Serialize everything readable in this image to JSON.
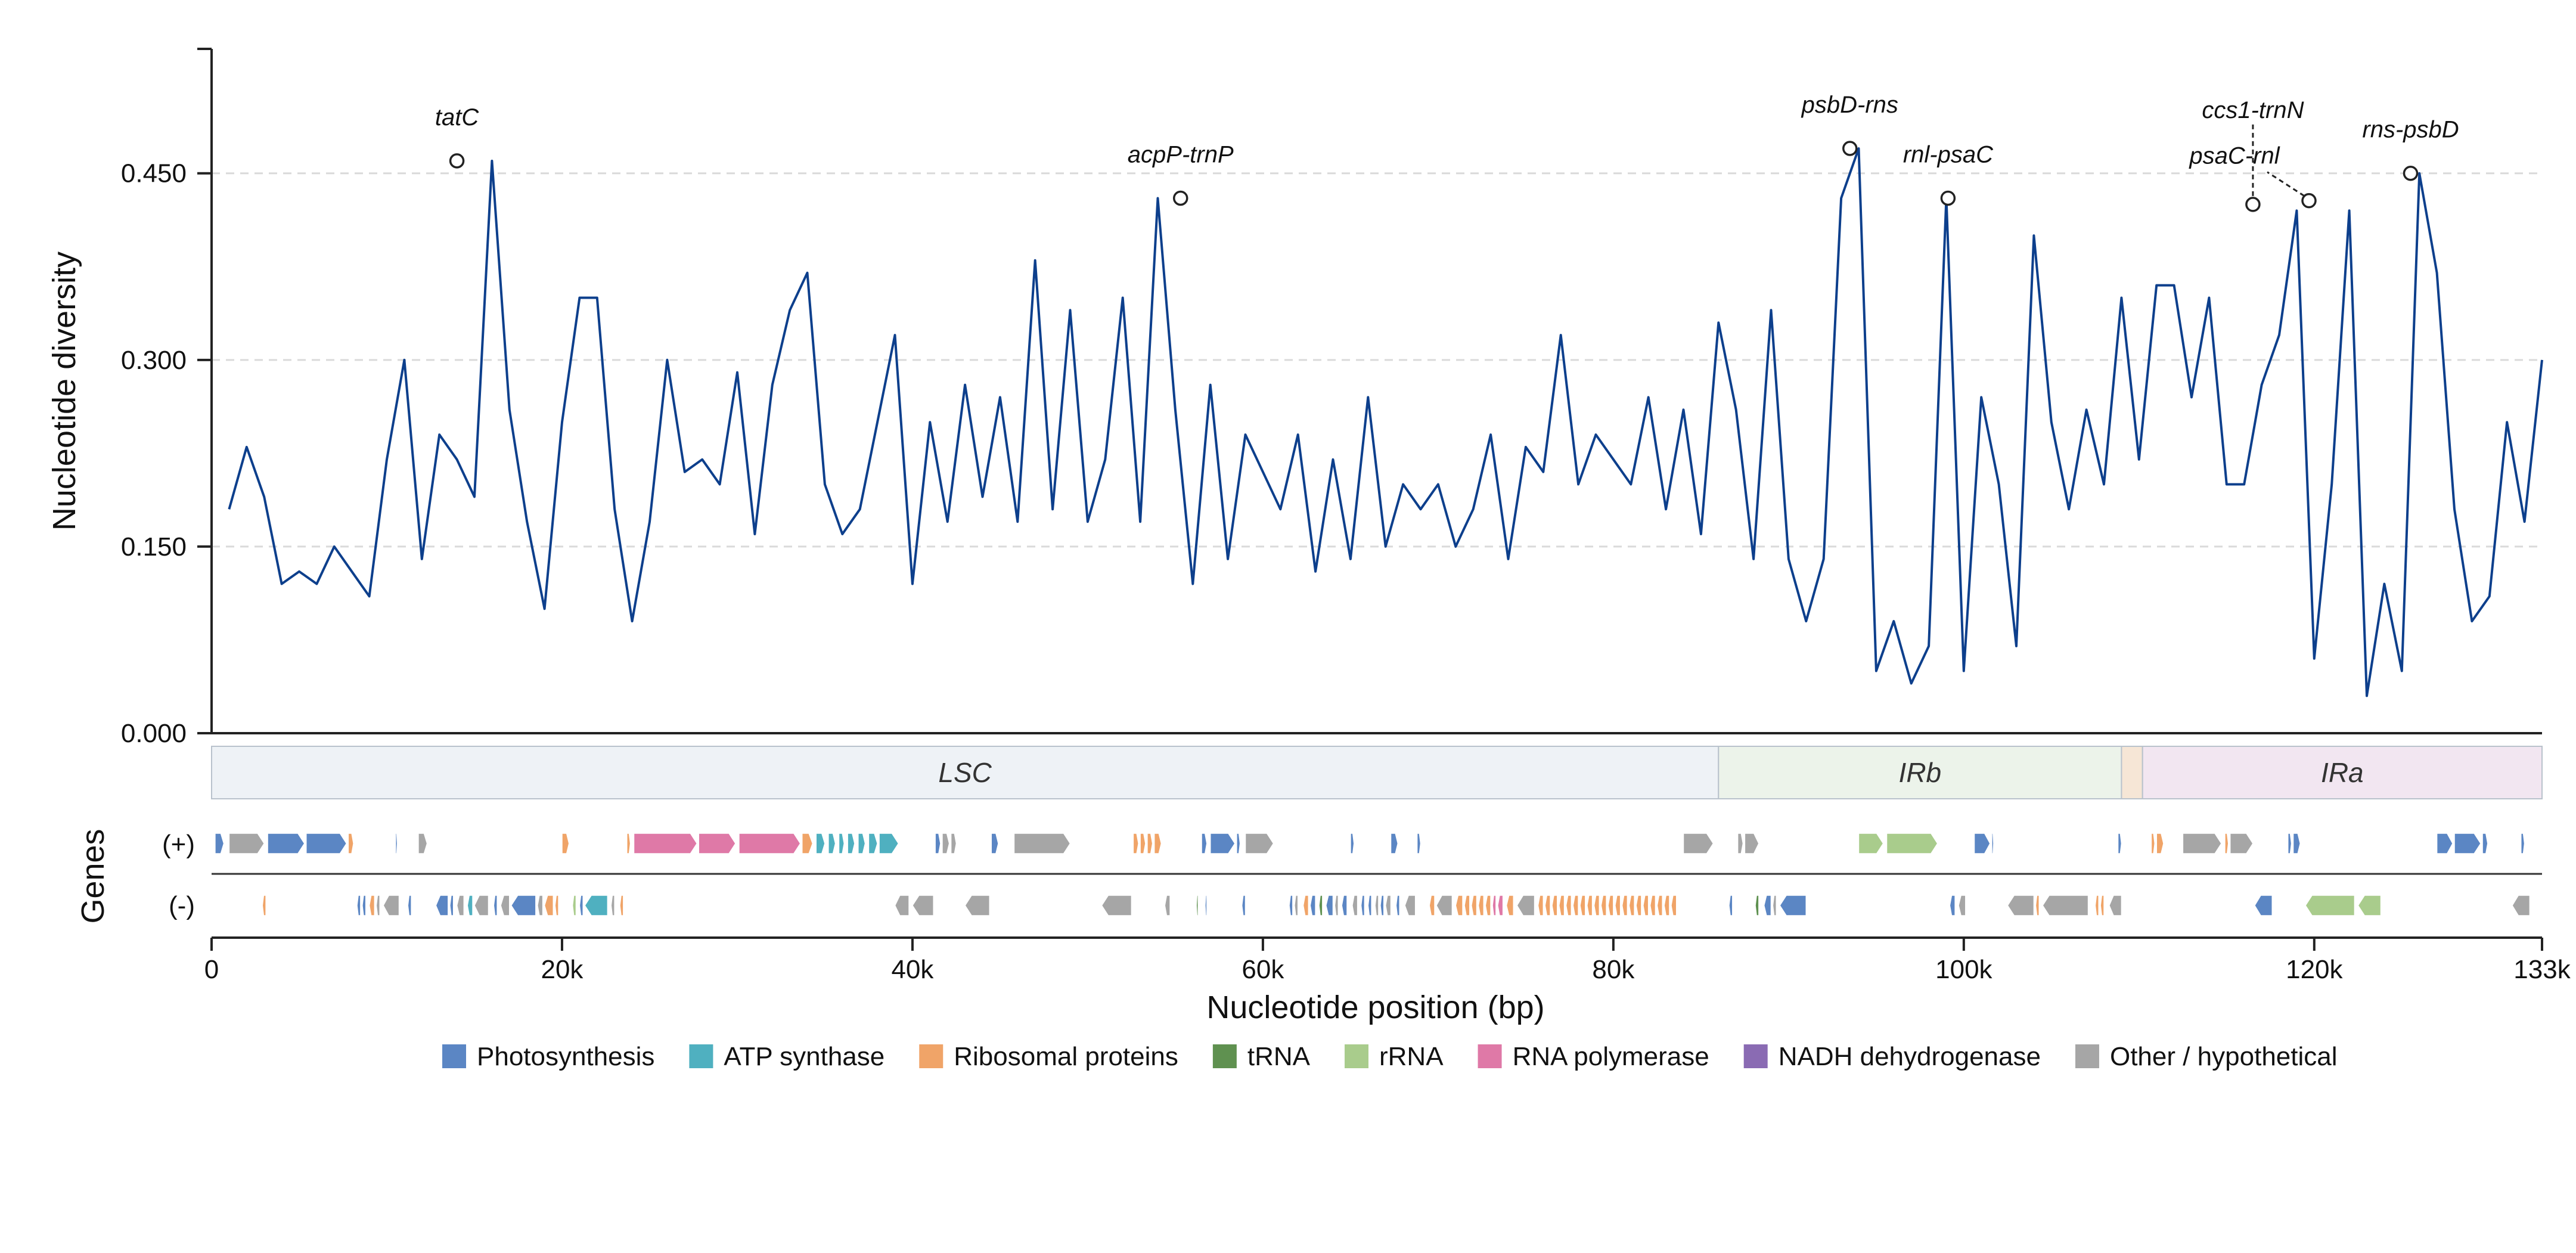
{
  "chart_data": {
    "type": "line",
    "ylabel": "Nucleotide diversity",
    "xlabel": "Nucleotide position (bp)",
    "genes_axis_label": "Genes",
    "xlim": [
      0,
      133000
    ],
    "ylim": [
      0,
      0.55
    ],
    "yticks": [
      {
        "v": 0.0,
        "label": "0.000"
      },
      {
        "v": 0.15,
        "label": "0.150"
      },
      {
        "v": 0.3,
        "label": "0.300"
      },
      {
        "v": 0.45,
        "label": "0.450"
      }
    ],
    "xticks": [
      {
        "v": 0,
        "label": "0"
      },
      {
        "v": 20000,
        "label": "20k"
      },
      {
        "v": 40000,
        "label": "40k"
      },
      {
        "v": 60000,
        "label": "60k"
      },
      {
        "v": 80000,
        "label": "80k"
      },
      {
        "v": 100000,
        "label": "100k"
      },
      {
        "v": 120000,
        "label": "120k"
      },
      {
        "v": 133000,
        "label": "133k"
      }
    ],
    "grid": "horizontal-dashed",
    "line_color": "#0d3f8c",
    "series": [
      {
        "x": [
          1000,
          2000,
          3000,
          4000,
          5000,
          6000,
          7000,
          8000,
          9000,
          10000,
          11000,
          12000,
          13000,
          14000,
          15000,
          16000,
          17000,
          18000,
          19000,
          20000,
          21000,
          22000,
          23000,
          24000,
          25000,
          26000,
          27000,
          28000,
          29000,
          30000,
          31000,
          32000,
          33000,
          34000,
          35000,
          36000,
          37000,
          38000,
          39000,
          40000,
          41000,
          42000,
          43000,
          44000,
          45000,
          46000,
          47000,
          48000,
          49000,
          50000,
          51000,
          52000,
          53000,
          54000,
          55000,
          56000,
          57000,
          58000,
          59000,
          60000,
          61000,
          62000,
          63000,
          64000,
          65000,
          66000,
          67000,
          68000,
          69000,
          70000,
          71000,
          72000,
          73000,
          74000,
          75000,
          76000,
          77000,
          78000,
          79000,
          80000,
          81000,
          82000,
          83000,
          84000,
          85000,
          86000,
          87000,
          88000,
          89000,
          90000,
          91000,
          92000,
          93000,
          94000,
          95000,
          96000,
          97000,
          98000,
          99000,
          100000,
          101000,
          102000,
          103000,
          104000,
          105000,
          106000,
          107000,
          108000,
          109000,
          110000,
          111000,
          112000,
          113000,
          114000,
          115000,
          116000,
          117000,
          118000,
          119000,
          120000,
          121000,
          122000,
          123000,
          124000,
          125000,
          126000,
          127000,
          128000,
          129000,
          130000,
          131000,
          132000,
          133000
        ],
        "values": [
          0.18,
          0.23,
          0.19,
          0.12,
          0.13,
          0.12,
          0.15,
          0.13,
          0.11,
          0.22,
          0.3,
          0.14,
          0.24,
          0.22,
          0.19,
          0.46,
          0.26,
          0.17,
          0.1,
          0.25,
          0.35,
          0.35,
          0.18,
          0.09,
          0.17,
          0.3,
          0.21,
          0.22,
          0.2,
          0.29,
          0.16,
          0.28,
          0.34,
          0.37,
          0.2,
          0.16,
          0.18,
          0.25,
          0.32,
          0.12,
          0.25,
          0.17,
          0.28,
          0.19,
          0.27,
          0.17,
          0.38,
          0.18,
          0.34,
          0.17,
          0.22,
          0.35,
          0.17,
          0.43,
          0.26,
          0.12,
          0.28,
          0.14,
          0.24,
          0.21,
          0.18,
          0.24,
          0.13,
          0.22,
          0.14,
          0.27,
          0.15,
          0.2,
          0.18,
          0.2,
          0.15,
          0.18,
          0.24,
          0.14,
          0.23,
          0.21,
          0.32,
          0.2,
          0.24,
          0.22,
          0.2,
          0.27,
          0.18,
          0.26,
          0.16,
          0.33,
          0.26,
          0.14,
          0.34,
          0.14,
          0.09,
          0.14,
          0.43,
          0.47,
          0.05,
          0.09,
          0.04,
          0.07,
          0.43,
          0.05,
          0.27,
          0.2,
          0.07,
          0.4,
          0.25,
          0.18,
          0.26,
          0.2,
          0.35,
          0.22,
          0.36,
          0.36,
          0.27,
          0.35,
          0.2,
          0.2,
          0.28,
          0.32,
          0.42,
          0.06,
          0.2,
          0.42,
          0.03,
          0.12,
          0.05,
          0.45,
          0.37,
          0.18,
          0.09,
          0.11,
          0.25,
          0.17,
          0.3
        ]
      }
    ],
    "peaks": [
      {
        "label": "tatC",
        "x": 14000,
        "y": 0.46
      },
      {
        "label": "acpP-trnP",
        "x": 55300,
        "y": 0.43
      },
      {
        "label": "psbD-rns",
        "x": 93500,
        "y": 0.47
      },
      {
        "label": "rnl-psaC",
        "x": 99100,
        "y": 0.43
      },
      {
        "label": "ccs1-trnN",
        "x": 116500,
        "y": 0.425
      },
      {
        "label": "psaC-rnl",
        "x": 119700,
        "y": 0.428
      },
      {
        "label": "rns-psbD",
        "x": 125500,
        "y": 0.45
      }
    ],
    "regions": [
      {
        "label": "LSC",
        "start": 0,
        "end": 86000,
        "color": "#eef2f6"
      },
      {
        "label": "IRb",
        "start": 86000,
        "end": 109000,
        "color": "#ecf3ea"
      },
      {
        "label": "",
        "start": 109000,
        "end": 110200,
        "color": "#f6e6d6"
      },
      {
        "label": "IRa",
        "start": 110200,
        "end": 133000,
        "color": "#f2e6f1"
      }
    ],
    "strand_labels": {
      "plus": "(+)",
      "minus": "(-)"
    },
    "category_colors": {
      "photo": "#5b86c4",
      "atp": "#4fb0c0",
      "ribo": "#f0a468",
      "trna": "#5f9150",
      "rrna": "#a9cc8c",
      "rpo": "#df79a7",
      "ndh": "#8a6bb3",
      "other": "#a6a6a6"
    },
    "genes_plus": [
      [
        200,
        700,
        "photo"
      ],
      [
        1000,
        3000,
        "other"
      ],
      [
        3200,
        5300,
        "photo"
      ],
      [
        5400,
        7700,
        "photo"
      ],
      [
        7800,
        8100,
        "ribo"
      ],
      [
        10500,
        10600,
        "photo"
      ],
      [
        11800,
        12300,
        "other"
      ],
      [
        20000,
        20400,
        "ribo"
      ],
      [
        23700,
        23900,
        "ribo"
      ],
      [
        24100,
        27700,
        "rpo"
      ],
      [
        27800,
        29900,
        "rpo"
      ],
      [
        30100,
        33600,
        "rpo"
      ],
      [
        33700,
        34300,
        "ribo"
      ],
      [
        34500,
        35000,
        "atp"
      ],
      [
        35200,
        35600,
        "atp"
      ],
      [
        35800,
        36100,
        "atp"
      ],
      [
        36300,
        36700,
        "atp"
      ],
      [
        36900,
        37300,
        "atp"
      ],
      [
        37500,
        38000,
        "atp"
      ],
      [
        38100,
        39200,
        "atp"
      ],
      [
        41300,
        41600,
        "photo"
      ],
      [
        41700,
        42100,
        "other"
      ],
      [
        42200,
        42500,
        "other"
      ],
      [
        44500,
        44900,
        "photo"
      ],
      [
        45800,
        49000,
        "other"
      ],
      [
        52600,
        52900,
        "ribo"
      ],
      [
        53000,
        53300,
        "ribo"
      ],
      [
        53400,
        53700,
        "ribo"
      ],
      [
        53800,
        54200,
        "ribo"
      ],
      [
        56500,
        56800,
        "photo"
      ],
      [
        57000,
        58400,
        "photo"
      ],
      [
        58500,
        58700,
        "photo"
      ],
      [
        59000,
        60600,
        "other"
      ],
      [
        65000,
        65200,
        "photo"
      ],
      [
        67300,
        67700,
        "photo"
      ],
      [
        68800,
        69000,
        "photo"
      ],
      [
        84000,
        85700,
        "other"
      ],
      [
        87100,
        87400,
        "other"
      ],
      [
        87500,
        88300,
        "other"
      ],
      [
        94000,
        95400,
        "rrna"
      ],
      [
        95600,
        98500,
        "rrna"
      ],
      [
        100600,
        101500,
        "photo"
      ],
      [
        101600,
        101700,
        "photo"
      ],
      [
        108800,
        109000,
        "photo"
      ],
      [
        110700,
        110900,
        "ribo"
      ],
      [
        111000,
        111400,
        "ribo"
      ],
      [
        112500,
        114700,
        "other"
      ],
      [
        114900,
        115100,
        "ribo"
      ],
      [
        115200,
        116500,
        "other"
      ],
      [
        118500,
        118700,
        "photo"
      ],
      [
        118800,
        119200,
        "photo"
      ],
      [
        127000,
        127900,
        "photo"
      ],
      [
        128000,
        129500,
        "photo"
      ],
      [
        129600,
        129900,
        "photo"
      ],
      [
        131800,
        132000,
        "photo"
      ]
    ],
    "genes_minus": [
      [
        2900,
        3100,
        "ribo"
      ],
      [
        8300,
        8500,
        "photo"
      ],
      [
        8600,
        8800,
        "photo"
      ],
      [
        9000,
        9300,
        "ribo"
      ],
      [
        9400,
        9600,
        "other"
      ],
      [
        9800,
        10700,
        "other"
      ],
      [
        11200,
        11400,
        "photo"
      ],
      [
        12800,
        13500,
        "photo"
      ],
      [
        13600,
        13800,
        "photo"
      ],
      [
        14000,
        14400,
        "other"
      ],
      [
        14600,
        14900,
        "atp"
      ],
      [
        15000,
        15800,
        "other"
      ],
      [
        16100,
        16300,
        "photo"
      ],
      [
        16500,
        17000,
        "other"
      ],
      [
        17100,
        18500,
        "photo"
      ],
      [
        18600,
        18900,
        "other"
      ],
      [
        19000,
        19500,
        "ribo"
      ],
      [
        19600,
        19800,
        "ribo"
      ],
      [
        20600,
        20800,
        "rrna"
      ],
      [
        21000,
        21200,
        "photo"
      ],
      [
        21300,
        22600,
        "atp"
      ],
      [
        22800,
        23000,
        "other"
      ],
      [
        23300,
        23500,
        "ribo"
      ],
      [
        39000,
        39800,
        "other"
      ],
      [
        40000,
        41200,
        "other"
      ],
      [
        43000,
        44400,
        "other"
      ],
      [
        50800,
        52500,
        "other"
      ],
      [
        54400,
        54700,
        "other"
      ],
      [
        56200,
        56300,
        "trna"
      ],
      [
        56700,
        56800,
        "photo"
      ],
      [
        58800,
        59000,
        "photo"
      ],
      [
        61500,
        61700,
        "photo"
      ],
      [
        61800,
        62000,
        "other"
      ],
      [
        62300,
        62600,
        "ribo"
      ],
      [
        62700,
        63000,
        "photo"
      ],
      [
        63200,
        63400,
        "trna"
      ],
      [
        63600,
        64000,
        "photo"
      ],
      [
        64100,
        64300,
        "other"
      ],
      [
        64500,
        64800,
        "photo"
      ],
      [
        65100,
        65400,
        "other"
      ],
      [
        65600,
        65800,
        "photo"
      ],
      [
        66000,
        66200,
        "photo"
      ],
      [
        66400,
        66600,
        "other"
      ],
      [
        66700,
        66900,
        "photo"
      ],
      [
        67000,
        67300,
        "other"
      ],
      [
        67600,
        67800,
        "photo"
      ],
      [
        68100,
        68700,
        "other"
      ],
      [
        69500,
        69800,
        "ribo"
      ],
      [
        69900,
        70800,
        "other"
      ],
      [
        71000,
        71400,
        "ribo"
      ],
      [
        71500,
        71800,
        "ribo"
      ],
      [
        71900,
        72200,
        "ribo"
      ],
      [
        72300,
        72600,
        "ribo"
      ],
      [
        72700,
        73000,
        "ribo"
      ],
      [
        73100,
        73300,
        "rpo"
      ],
      [
        73400,
        73700,
        "rpo"
      ],
      [
        73900,
        74300,
        "ribo"
      ],
      [
        74500,
        75500,
        "other"
      ],
      [
        75700,
        76000,
        "ribo"
      ],
      [
        76100,
        76400,
        "ribo"
      ],
      [
        76500,
        76800,
        "ribo"
      ],
      [
        76900,
        77200,
        "ribo"
      ],
      [
        77300,
        77600,
        "ribo"
      ],
      [
        77700,
        78000,
        "ribo"
      ],
      [
        78100,
        78400,
        "ribo"
      ],
      [
        78500,
        78800,
        "ribo"
      ],
      [
        78900,
        79200,
        "ribo"
      ],
      [
        79300,
        79600,
        "ribo"
      ],
      [
        79700,
        80000,
        "ribo"
      ],
      [
        80100,
        80400,
        "ribo"
      ],
      [
        80500,
        80800,
        "ribo"
      ],
      [
        80900,
        81200,
        "ribo"
      ],
      [
        81300,
        81600,
        "ribo"
      ],
      [
        81700,
        82000,
        "ribo"
      ],
      [
        82100,
        82400,
        "ribo"
      ],
      [
        82500,
        82800,
        "ribo"
      ],
      [
        82900,
        83200,
        "ribo"
      ],
      [
        83300,
        83600,
        "ribo"
      ],
      [
        86600,
        86800,
        "photo"
      ],
      [
        88100,
        88300,
        "trna"
      ],
      [
        88600,
        89000,
        "photo"
      ],
      [
        89100,
        89300,
        "other"
      ],
      [
        89500,
        91000,
        "photo"
      ],
      [
        99200,
        99500,
        "photo"
      ],
      [
        99700,
        100100,
        "other"
      ],
      [
        102500,
        104000,
        "other"
      ],
      [
        104100,
        104300,
        "ribo"
      ],
      [
        104500,
        107100,
        "other"
      ],
      [
        107500,
        107700,
        "ribo"
      ],
      [
        107800,
        108000,
        "ribo"
      ],
      [
        108300,
        109000,
        "other"
      ],
      [
        116600,
        117600,
        "photo"
      ],
      [
        119500,
        122300,
        "rrna"
      ],
      [
        122500,
        123800,
        "rrna"
      ],
      [
        131300,
        132300,
        "other"
      ]
    ],
    "legend": [
      {
        "label": "Photosynthesis",
        "key": "photo"
      },
      {
        "label": "ATP synthase",
        "key": "atp"
      },
      {
        "label": "Ribosomal proteins",
        "key": "ribo"
      },
      {
        "label": "tRNA",
        "key": "trna"
      },
      {
        "label": "rRNA",
        "key": "rrna"
      },
      {
        "label": "RNA polymerase",
        "key": "rpo"
      },
      {
        "label": "NADH dehydrogenase",
        "key": "ndh"
      },
      {
        "label": "Other / hypothetical",
        "key": "other"
      }
    ]
  }
}
